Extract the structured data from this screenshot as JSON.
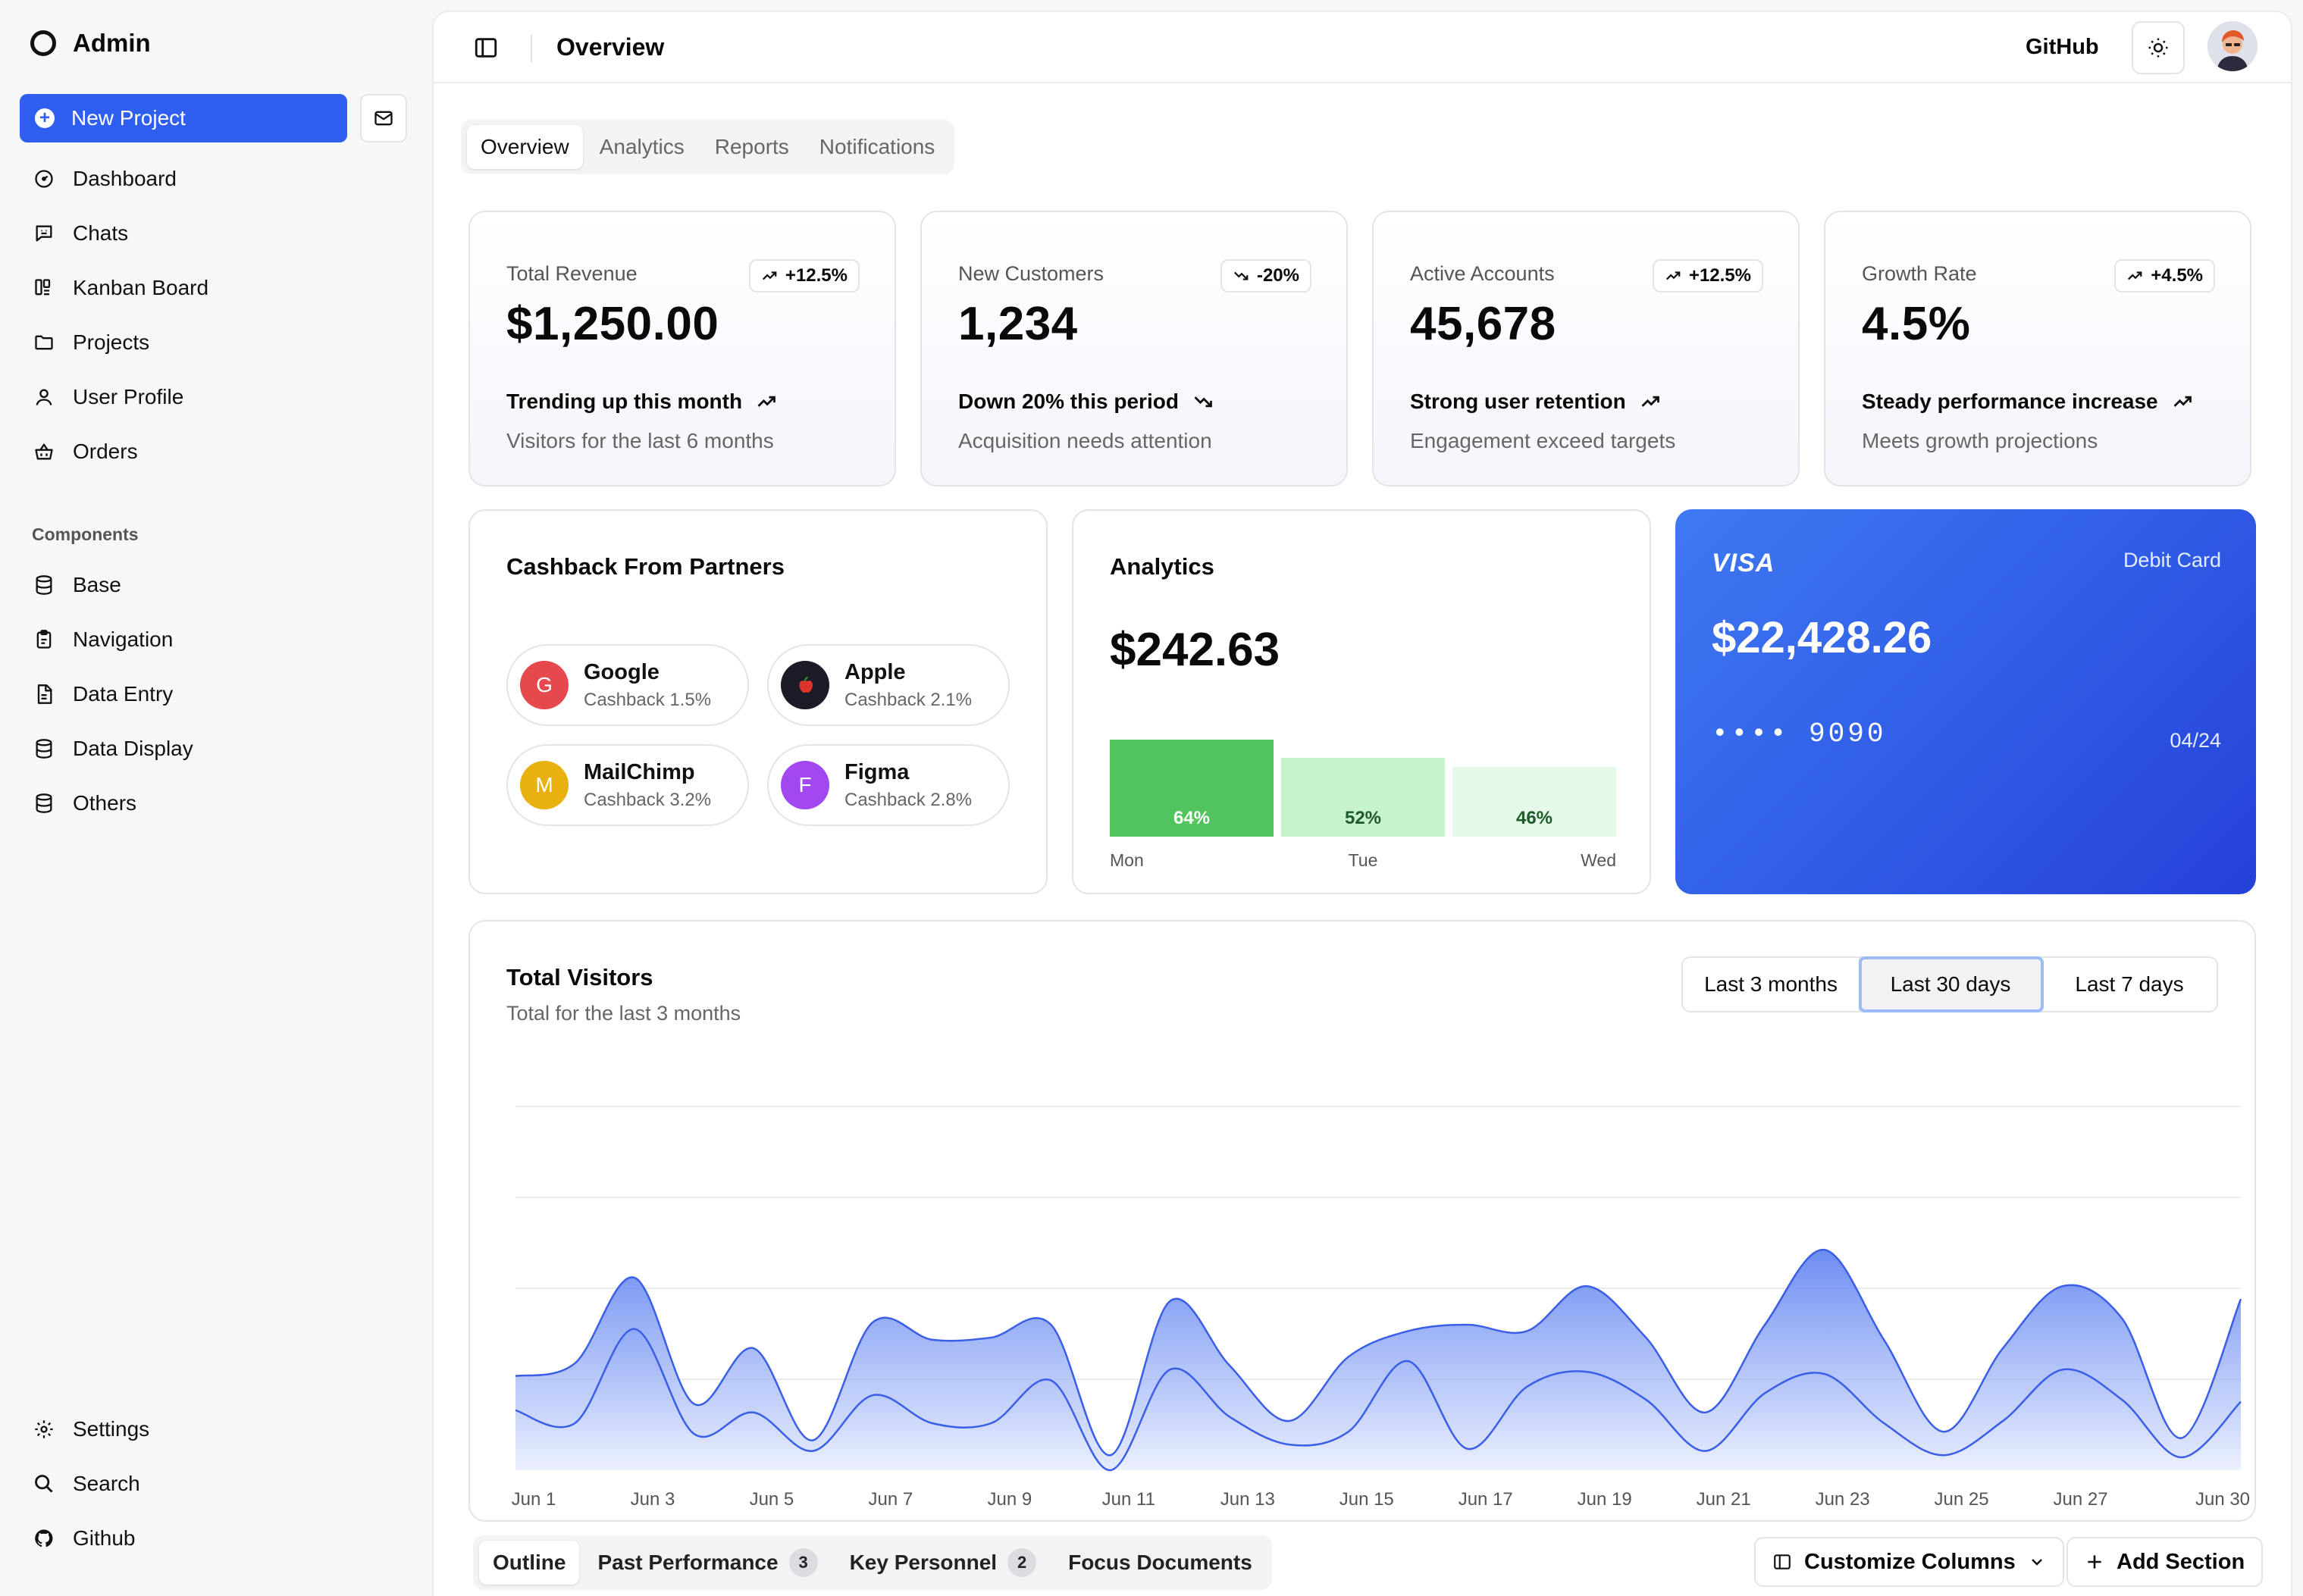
{
  "sidebar": {
    "brand": "Admin",
    "new_project": "New Project",
    "nav": [
      {
        "label": "Dashboard",
        "icon": "dashboard-icon"
      },
      {
        "label": "Chats",
        "icon": "chat-icon"
      },
      {
        "label": "Kanban Board",
        "icon": "kanban-icon"
      },
      {
        "label": "Projects",
        "icon": "folder-icon"
      },
      {
        "label": "User Profile",
        "icon": "user-icon"
      },
      {
        "label": "Orders",
        "icon": "basket-icon"
      }
    ],
    "section_label": "Components",
    "components": [
      {
        "label": "Base",
        "icon": "database-icon"
      },
      {
        "label": "Navigation",
        "icon": "clipboard-icon"
      },
      {
        "label": "Data Entry",
        "icon": "file-icon"
      },
      {
        "label": "Data Display",
        "icon": "database-icon"
      },
      {
        "label": "Others",
        "icon": "database-icon"
      }
    ],
    "footer": [
      {
        "label": "Settings",
        "icon": "gear-icon"
      },
      {
        "label": "Search",
        "icon": "search-icon"
      },
      {
        "label": "Github",
        "icon": "github-icon"
      }
    ]
  },
  "header": {
    "title": "Overview",
    "github": "GitHub"
  },
  "tabs": [
    "Overview",
    "Analytics",
    "Reports",
    "Notifications"
  ],
  "stats": [
    {
      "label": "Total Revenue",
      "badge": "+12.5%",
      "direction": "up",
      "value": "$1,250.00",
      "trend": "Trending up this month",
      "sub": "Visitors for the last 6 months"
    },
    {
      "label": "New Customers",
      "badge": "-20%",
      "direction": "down",
      "value": "1,234",
      "trend": "Down 20% this period",
      "sub": "Acquisition needs attention"
    },
    {
      "label": "Active Accounts",
      "badge": "+12.5%",
      "direction": "up",
      "value": "45,678",
      "trend": "Strong user retention",
      "sub": "Engagement exceed targets"
    },
    {
      "label": "Growth Rate",
      "badge": "+4.5%",
      "direction": "up",
      "value": "4.5%",
      "trend": "Steady performance increase",
      "sub": "Meets growth projections"
    }
  ],
  "cashback": {
    "title": "Cashback From Partners",
    "partners": [
      {
        "initial": "G",
        "name": "Google",
        "cashback": "Cashback 1.5%",
        "color": "#e5484d"
      },
      {
        "initial": "",
        "name": "Apple",
        "cashback": "Cashback 2.1%",
        "color": "#1c1c28"
      },
      {
        "initial": "M",
        "name": "MailChimp",
        "cashback": "Cashback 3.2%",
        "color": "#e9b10f"
      },
      {
        "initial": "F",
        "name": "Figma",
        "cashback": "Cashback 2.8%",
        "color": "#a148f0"
      }
    ]
  },
  "analytics": {
    "title": "Analytics",
    "amount": "$242.63",
    "bars": [
      {
        "day": "Mon",
        "label": "64%",
        "value": 64,
        "color": "#52c45e",
        "text_color": "#ffffff"
      },
      {
        "day": "Tue",
        "label": "52%",
        "value": 52,
        "color": "#c6f3cc",
        "text_color": "#1f5a2a"
      },
      {
        "day": "Wed",
        "label": "46%",
        "value": 46,
        "color": "#e5f9e8",
        "text_color": "#1f5a2a"
      }
    ]
  },
  "card": {
    "brand": "VISA",
    "type": "Debit Card",
    "balance": "$22,428.26",
    "number": "•••• 9090",
    "expiry": "04/24"
  },
  "visitors": {
    "title": "Total Visitors",
    "subtitle": "Total for the last 3 months",
    "ranges": [
      "Last 3 months",
      "Last 30 days",
      "Last 7 days"
    ],
    "active_range": 1
  },
  "chart_data": {
    "type": "area",
    "title": "Total Visitors",
    "x": [
      "Jun 1",
      "Jun 2",
      "Jun 3",
      "Jun 4",
      "Jun 5",
      "Jun 6",
      "Jun 7",
      "Jun 8",
      "Jun 9",
      "Jun 10",
      "Jun 11",
      "Jun 12",
      "Jun 13",
      "Jun 14",
      "Jun 15",
      "Jun 16",
      "Jun 17",
      "Jun 18",
      "Jun 19",
      "Jun 20",
      "Jun 21",
      "Jun 22",
      "Jun 23",
      "Jun 24",
      "Jun 25",
      "Jun 26",
      "Jun 27",
      "Jun 28",
      "Jun 29",
      "Jun 30"
    ],
    "xticks": [
      "Jun 1",
      "Jun 3",
      "Jun 5",
      "Jun 7",
      "Jun 9",
      "Jun 11",
      "Jun 13",
      "Jun 15",
      "Jun 17",
      "Jun 19",
      "Jun 21",
      "Jun 23",
      "Jun 25",
      "Jun 27",
      "Jun 30"
    ],
    "stacked": true,
    "series": [
      {
        "values": [
          140,
          110,
          330,
          85,
          135,
          45,
          175,
          110,
          110,
          210,
          0,
          235,
          125,
          60,
          90,
          255,
          50,
          195,
          230,
          165,
          45,
          180,
          225,
          110,
          35,
          115,
          235,
          165,
          30,
          160
        ]
      },
      {
        "values": [
          80,
          140,
          120,
          70,
          150,
          25,
          170,
          195,
          200,
          130,
          35,
          160,
          120,
          55,
          175,
          70,
          290,
          130,
          200,
          145,
          90,
          160,
          290,
          195,
          55,
          170,
          195,
          190,
          45,
          240
        ]
      }
    ],
    "ylim": [
      0,
      850
    ],
    "grid": "horizontal"
  },
  "bottom": {
    "tabs": [
      {
        "label": "Outline",
        "count": ""
      },
      {
        "label": "Past Performance",
        "count": "3"
      },
      {
        "label": "Key Personnel",
        "count": "2"
      },
      {
        "label": "Focus Documents",
        "count": ""
      }
    ],
    "customize": "Customize Columns",
    "add_section": "Add Section"
  }
}
